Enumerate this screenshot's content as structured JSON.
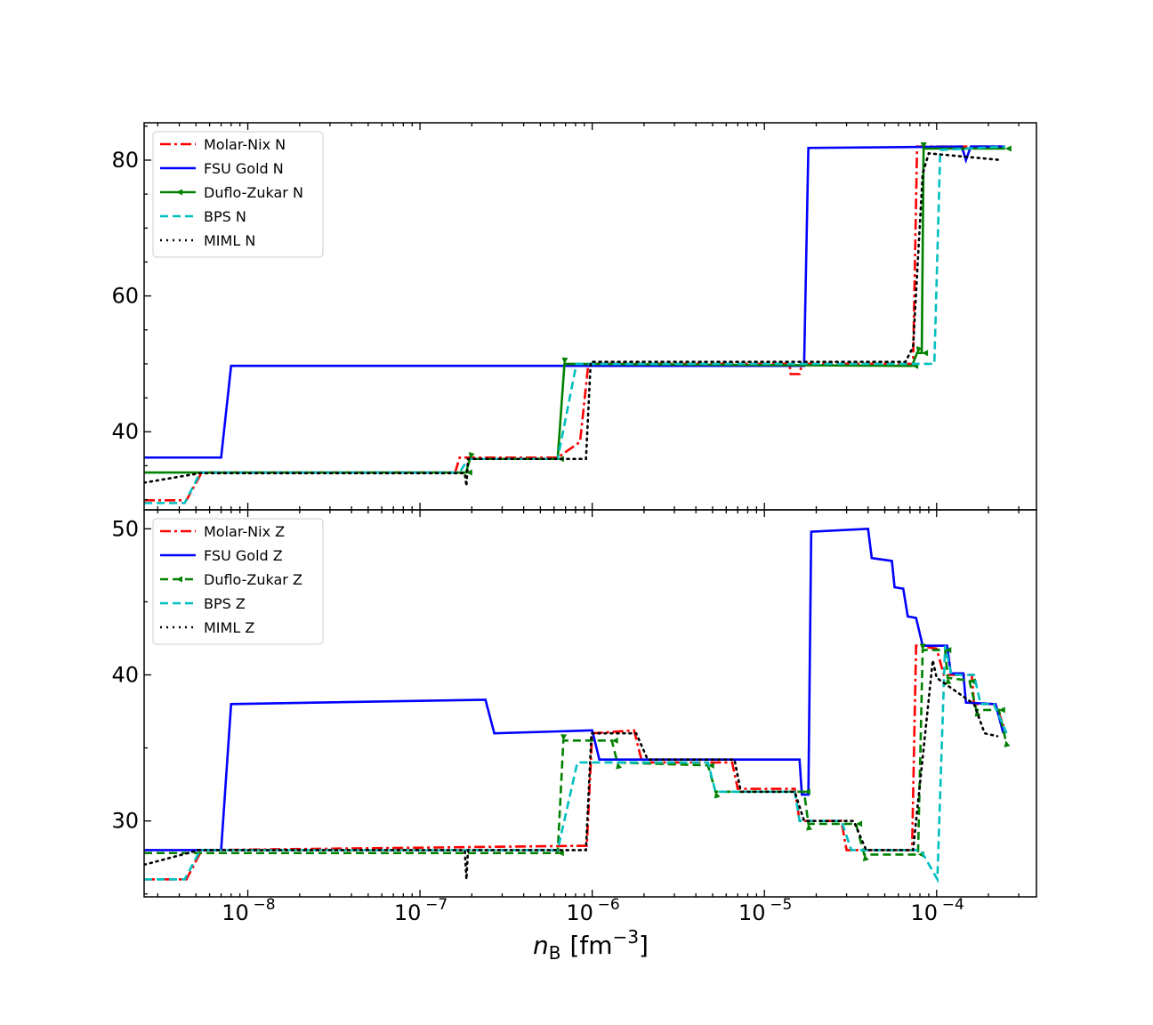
{
  "figure": {
    "xlabel_main": "n",
    "xlabel_sub": "B",
    "xlabel_unit": "[fm",
    "xlabel_exp": "−3",
    "xlabel_close": "]"
  },
  "colors": {
    "molar_nix": "#ff0000",
    "fsu_gold": "#0000ff",
    "duflo_zukar": "#008000",
    "bps": "#00bfbf",
    "miml": "#000000"
  },
  "chart_data": [
    {
      "type": "line",
      "panel": "top",
      "xscale": "log",
      "xlim": [
        2.5e-09,
        0.00038
      ],
      "ylim": [
        28.5,
        85.5
      ],
      "x_tick_labels": [
        "10",
        "10",
        "10",
        "10",
        "10"
      ],
      "x_tick_exponents": [
        "−8",
        "−7",
        "−6",
        "−5",
        "−4"
      ],
      "y_ticks": [
        40,
        60,
        80
      ],
      "y_tick_labels": [
        "40",
        "60",
        "80"
      ],
      "legend_position": "upper-left",
      "grid": false,
      "series": [
        {
          "name": "Molar-Nix N",
          "style": "dashdot",
          "color": "#ff0000",
          "points": [
            [
              2.5e-09,
              29.9
            ],
            [
              4.4e-09,
              29.9
            ],
            [
              5.4e-09,
              34.0
            ],
            [
              1.6e-07,
              34.0
            ],
            [
              1.7e-07,
              36.2
            ],
            [
              6.3e-07,
              36.2
            ],
            [
              8.5e-07,
              38.5
            ],
            [
              9.5e-07,
              50.0
            ],
            [
              1.4e-05,
              50.0
            ],
            [
              1.42e-05,
              48.5
            ],
            [
              1.6e-05,
              48.5
            ],
            [
              1.65e-05,
              50.0
            ],
            [
              7.3e-05,
              50.0
            ],
            [
              7.7e-05,
              82.0
            ],
            [
              0.00025,
              82.0
            ]
          ]
        },
        {
          "name": "FSU Gold N",
          "style": "solid",
          "color": "#0000ff",
          "points": [
            [
              2.5e-09,
              36.2
            ],
            [
              7e-09,
              36.2
            ],
            [
              8e-09,
              49.7
            ],
            [
              1.7e-05,
              49.7
            ],
            [
              1.8e-05,
              81.8
            ],
            [
              0.00014,
              82.0
            ],
            [
              0.000148,
              80.0
            ],
            [
              0.000158,
              82.0
            ],
            [
              0.00025,
              82.0
            ]
          ]
        },
        {
          "name": "Duflo-Zukar N",
          "style": "solid-marker",
          "color": "#008000",
          "points": [
            [
              2.5e-09,
              34.0
            ],
            [
              1.85e-07,
              34.0
            ],
            [
              1.95e-07,
              36.0
            ],
            [
              6.3e-07,
              36.0
            ],
            [
              6.9e-07,
              50.0
            ],
            [
              7.2e-05,
              49.7
            ],
            [
              7.7e-05,
              51.6
            ],
            [
              8.2e-05,
              51.6
            ],
            [
              8.4e-05,
              81.7
            ],
            [
              0.00025,
              81.7
            ]
          ]
        },
        {
          "name": "BPS N",
          "style": "dashed",
          "color": "#00bfbf",
          "points": [
            [
              2.5e-09,
              29.5
            ],
            [
              4.3e-09,
              29.5
            ],
            [
              5.3e-09,
              34.0
            ],
            [
              1.7e-07,
              34.0
            ],
            [
              1.9e-07,
              36.0
            ],
            [
              6.3e-07,
              36.0
            ],
            [
              8.1e-07,
              50.0
            ],
            [
              8e-05,
              50.0
            ],
            [
              9.7e-05,
              50.0
            ],
            [
              0.000105,
              81.5
            ],
            [
              0.00025,
              82.0
            ]
          ]
        },
        {
          "name": "MIML N",
          "style": "dotted",
          "color": "#000000",
          "points": [
            [
              2.5e-09,
              32.5
            ],
            [
              5.3e-09,
              33.9
            ],
            [
              1.82e-07,
              33.9
            ],
            [
              1.86e-07,
              32.0
            ],
            [
              1.9e-07,
              36.0
            ],
            [
              8.5e-07,
              36.0
            ],
            [
              9.2e-07,
              36.0
            ],
            [
              9.8e-07,
              50.3
            ],
            [
              6.6e-05,
              50.3
            ],
            [
              7.3e-05,
              52.5
            ],
            [
              8.3e-05,
              78.0
            ],
            [
              9e-05,
              81.0
            ],
            [
              0.00024,
              80.0
            ]
          ]
        }
      ]
    },
    {
      "type": "line",
      "panel": "bottom",
      "xscale": "log",
      "xlim": [
        2.5e-09,
        0.00038
      ],
      "ylim": [
        24.8,
        51.3
      ],
      "x_tick_labels": [
        "10",
        "10",
        "10",
        "10",
        "10"
      ],
      "x_tick_exponents": [
        "−8",
        "−7",
        "−6",
        "−5",
        "−4"
      ],
      "y_ticks": [
        30,
        40,
        50
      ],
      "y_tick_labels": [
        "30",
        "40",
        "50"
      ],
      "legend_position": "upper-left",
      "grid": false,
      "series": [
        {
          "name": "Molar-Nix Z",
          "style": "dashdot",
          "color": "#ff0000",
          "points": [
            [
              2.5e-09,
              26.0
            ],
            [
              4.4e-09,
              26.0
            ],
            [
              5.4e-09,
              28.0
            ],
            [
              9.3e-07,
              28.3
            ],
            [
              1e-06,
              36.0
            ],
            [
              1.75e-06,
              36.2
            ],
            [
              1.95e-06,
              34.0
            ],
            [
              6.5e-06,
              34.0
            ],
            [
              7e-06,
              32.2
            ],
            [
              1.5e-05,
              32.2
            ],
            [
              1.6e-05,
              30.0
            ],
            [
              2.8e-05,
              30.0
            ],
            [
              3e-05,
              28.0
            ],
            [
              7.2e-05,
              28.0
            ],
            [
              7.6e-05,
              42.0
            ],
            [
              0.0001,
              41.8
            ],
            [
              0.00011,
              40.0
            ],
            [
              0.00016,
              40.0
            ],
            [
              0.000165,
              38.0
            ],
            [
              0.00022,
              38.0
            ],
            [
              0.000245,
              36.5
            ]
          ]
        },
        {
          "name": "FSU Gold Z",
          "style": "solid",
          "color": "#0000ff",
          "points": [
            [
              2.5e-09,
              28.0
            ],
            [
              7e-09,
              28.0
            ],
            [
              8e-09,
              38.0
            ],
            [
              2.4e-07,
              38.3
            ],
            [
              2.7e-07,
              36.0
            ],
            [
              1e-06,
              36.2
            ],
            [
              1.1e-06,
              34.2
            ],
            [
              1.6e-05,
              34.2
            ],
            [
              1.65e-05,
              31.8
            ],
            [
              1.8e-05,
              31.8
            ],
            [
              1.87e-05,
              49.8
            ],
            [
              4e-05,
              50.0
            ],
            [
              4.2e-05,
              48.0
            ],
            [
              5.5e-05,
              47.8
            ],
            [
              5.7e-05,
              46.0
            ],
            [
              6.4e-05,
              45.9
            ],
            [
              6.8e-05,
              44.0
            ],
            [
              7.6e-05,
              43.9
            ],
            [
              8.3e-05,
              42.0
            ],
            [
              0.000115,
              42.0
            ],
            [
              0.000121,
              40.1
            ],
            [
              0.000143,
              40.1
            ],
            [
              0.000148,
              38.1
            ],
            [
              0.00022,
              38.0
            ],
            [
              0.000244,
              36.0
            ]
          ]
        },
        {
          "name": "Duflo-Zukar Z",
          "style": "dashed-marker",
          "color": "#008000",
          "points": [
            [
              2.5e-09,
              27.8
            ],
            [
              6.3e-07,
              27.8
            ],
            [
              6.8e-07,
              35.5
            ],
            [
              1.3e-06,
              35.5
            ],
            [
              1.4e-06,
              34.0
            ],
            [
              4.7e-06,
              33.8
            ],
            [
              5.2e-06,
              32.0
            ],
            [
              1.7e-05,
              32.0
            ],
            [
              1.8e-05,
              29.8
            ],
            [
              3.4e-05,
              29.8
            ],
            [
              3.8e-05,
              27.7
            ],
            [
              7.8e-05,
              27.7
            ],
            [
              8.3e-05,
              41.7
            ],
            [
              0.000112,
              41.7
            ],
            [
              0.000116,
              39.8
            ],
            [
              0.000155,
              39.6
            ],
            [
              0.00017,
              37.6
            ],
            [
              0.00023,
              37.6
            ],
            [
              0.000252,
              35.5
            ]
          ]
        },
        {
          "name": "BPS Z",
          "style": "dashed",
          "color": "#00bfbf",
          "points": [
            [
              2.5e-09,
              26.0
            ],
            [
              4.3e-09,
              26.0
            ],
            [
              5.3e-09,
              28.0
            ],
            [
              6.3e-07,
              28.0
            ],
            [
              8.2e-07,
              34.0
            ],
            [
              4.7e-06,
              34.0
            ],
            [
              5.2e-06,
              32.0
            ],
            [
              1.5e-05,
              32.0
            ],
            [
              1.6e-05,
              30.0
            ],
            [
              2.8e-05,
              30.0
            ],
            [
              3.2e-05,
              28.0
            ],
            [
              8.1e-05,
              28.0
            ],
            [
              0.000101,
              26.0
            ],
            [
              0.000112,
              42.0
            ],
            [
              0.000122,
              40.0
            ],
            [
              0.000165,
              40.0
            ],
            [
              0.00018,
              38.0
            ],
            [
              0.000215,
              38.0
            ],
            [
              0.000255,
              36.0
            ]
          ]
        },
        {
          "name": "MIML Z",
          "style": "dotted",
          "color": "#000000",
          "points": [
            [
              2.5e-09,
              27.0
            ],
            [
              5.2e-09,
              28.0
            ],
            [
              1.82e-07,
              28.0
            ],
            [
              1.86e-07,
              26.0
            ],
            [
              1.9e-07,
              28.0
            ],
            [
              9.2e-07,
              28.0
            ],
            [
              9.9e-07,
              36.0
            ],
            [
              1.8e-06,
              36.0
            ],
            [
              2.1e-06,
              34.2
            ],
            [
              6.7e-06,
              34.2
            ],
            [
              7.3e-06,
              32.0
            ],
            [
              1.5e-05,
              32.0
            ],
            [
              1.7e-05,
              30.0
            ],
            [
              3.3e-05,
              30.0
            ],
            [
              3.9e-05,
              28.0
            ],
            [
              7.3e-05,
              28.0
            ],
            [
              9.5e-05,
              41.0
            ],
            [
              0.0001,
              39.8
            ],
            [
              0.000165,
              38.0
            ],
            [
              0.00019,
              36.0
            ],
            [
              0.000225,
              35.8
            ]
          ]
        }
      ]
    }
  ]
}
